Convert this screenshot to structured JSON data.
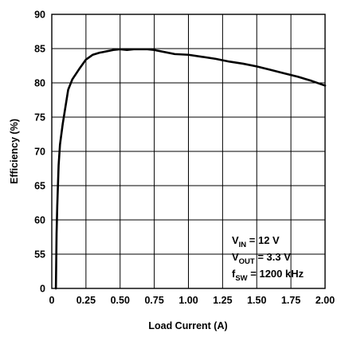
{
  "chart_data": {
    "type": "line",
    "xlabel": "Load Current (A)",
    "ylabel": "Efficiency (%)",
    "xlim": [
      0,
      2.0
    ],
    "ylim_labels": [
      "0",
      "55",
      "60",
      "65",
      "70",
      "75",
      "80",
      "85",
      "90"
    ],
    "ylim_note": "broken axis: bottom gridline labeled 0, grid continues 55-90",
    "x_ticks": [
      "0",
      "0.25",
      "0.50",
      "0.75",
      "1.00",
      "1.25",
      "1.50",
      "1.75",
      "2.00"
    ],
    "grid": true,
    "annotation": {
      "lines": [
        {
          "main": "V",
          "sub": "IN",
          "rest": " = 12 V"
        },
        {
          "main": "V",
          "sub": "OUT",
          "rest": " = 3.3 V"
        },
        {
          "main": "f",
          "sub": "SW",
          "rest": " = 1200 kHz"
        }
      ]
    },
    "series": [
      {
        "x": [
          0.03,
          0.035,
          0.04,
          0.05,
          0.06,
          0.08,
          0.1,
          0.12,
          0.15,
          0.2,
          0.25,
          0.3,
          0.35,
          0.4,
          0.45,
          0.5,
          0.55,
          0.6,
          0.65,
          0.7,
          0.75,
          0.8,
          0.9,
          1.0,
          1.1,
          1.2,
          1.3,
          1.4,
          1.5,
          1.6,
          1.7,
          1.8,
          1.9,
          2.0
        ],
        "y": [
          50,
          58,
          62,
          68,
          71,
          74,
          76.5,
          79,
          80.5,
          82,
          83.4,
          84.1,
          84.4,
          84.6,
          84.8,
          84.9,
          84.8,
          84.9,
          84.9,
          84.9,
          84.8,
          84.6,
          84.2,
          84.1,
          83.8,
          83.5,
          83.1,
          82.8,
          82.4,
          81.9,
          81.4,
          80.9,
          80.3,
          79.6
        ]
      }
    ]
  }
}
